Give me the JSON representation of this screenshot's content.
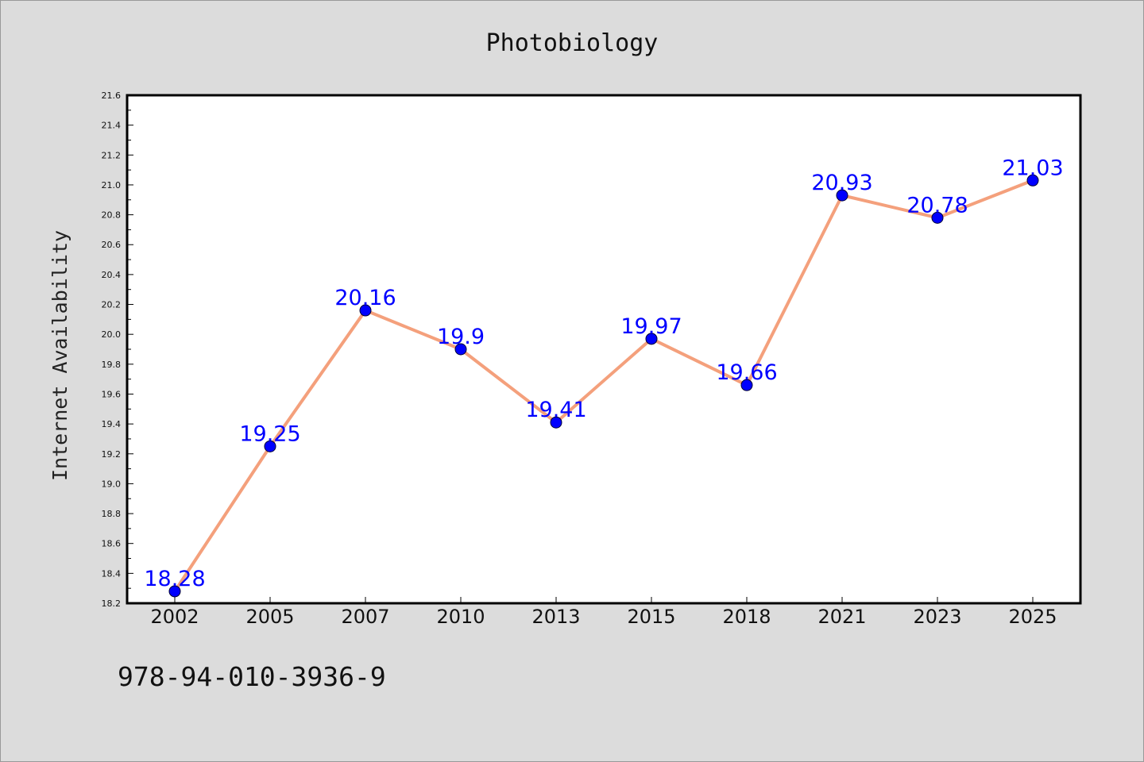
{
  "chart_data": {
    "type": "line",
    "title": "Photobiology",
    "xlabel": "",
    "ylabel": "Internet Availability",
    "categories": [
      "2002",
      "2005",
      "2007",
      "2010",
      "2013",
      "2015",
      "2018",
      "2021",
      "2023",
      "2025"
    ],
    "series": [
      {
        "values": [
          18.28,
          19.25,
          20.16,
          19.9,
          19.41,
          19.97,
          19.66,
          20.93,
          20.78,
          21.03
        ],
        "labels": [
          "18.28",
          "19.25",
          "20.16",
          "19.9",
          "19.41",
          "19.97",
          "19.66",
          "20.93",
          "20.78",
          "21.03"
        ]
      }
    ],
    "ylim": [
      18.2,
      21.6
    ],
    "yticks": [
      "18.2",
      "18.4",
      "18.6",
      "18.8",
      "19.0",
      "19.2",
      "19.4",
      "19.6",
      "19.8",
      "20.0",
      "20.2",
      "20.4",
      "20.6",
      "20.8",
      "21.0",
      "21.2",
      "21.4",
      "21.6"
    ],
    "grid": false,
    "legend": "none",
    "colors": {
      "line": "#f4a07c",
      "marker": "#0000ff",
      "data_label": "#0000ff",
      "background": "#dcdcdc",
      "plot_area": "#ffffff"
    }
  },
  "footnote": "978-94-010-3936-9"
}
